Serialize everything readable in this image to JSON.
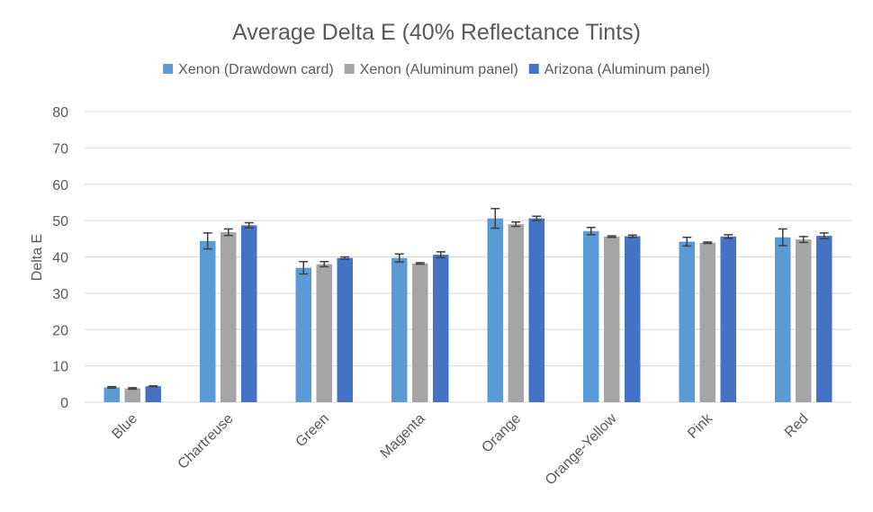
{
  "chart_data": {
    "type": "bar",
    "title": "Average Delta E (40% Reflectance Tints)",
    "xlabel": "",
    "ylabel": "Delta E",
    "ylim": [
      0,
      80
    ],
    "yticks": [
      0,
      10,
      20,
      30,
      40,
      50,
      60,
      70,
      80
    ],
    "grid": true,
    "legend_position": "top",
    "categories": [
      "Blue",
      "Chartreuse",
      "Green",
      "Magenta",
      "Orange",
      "Orange-Yellow",
      "Pink",
      "Red"
    ],
    "series": [
      {
        "name": "Xenon (Drawdown card)",
        "color": "#5b9bd5",
        "values": [
          4.1,
          44.4,
          37.0,
          39.7,
          50.6,
          47.1,
          44.2,
          45.4
        ],
        "errors": [
          0.2,
          2.2,
          1.7,
          1.1,
          2.7,
          1.0,
          1.2,
          2.3
        ]
      },
      {
        "name": "Xenon (Aluminum panel)",
        "color": "#a5a5a5",
        "values": [
          3.8,
          46.8,
          38.0,
          38.2,
          49.0,
          45.6,
          43.9,
          44.8
        ],
        "errors": [
          0.2,
          0.9,
          0.7,
          0.2,
          0.6,
          0.2,
          0.2,
          0.8
        ]
      },
      {
        "name": "Arizona (Aluminum panel)",
        "color": "#4472c4",
        "values": [
          4.4,
          48.7,
          39.7,
          40.6,
          50.6,
          45.7,
          45.6,
          45.8
        ],
        "errors": [
          0.1,
          0.7,
          0.3,
          0.8,
          0.6,
          0.3,
          0.5,
          0.8
        ]
      }
    ]
  }
}
